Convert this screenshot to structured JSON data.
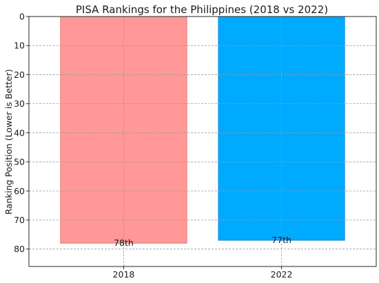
{
  "chart_data": {
    "type": "bar",
    "title": "PISA Rankings for the Philippines (2018 vs 2022)",
    "xlabel": "",
    "ylabel": "Ranking Position (Lower is Better)",
    "categories": [
      "2018",
      "2022"
    ],
    "values": [
      78,
      77
    ],
    "data_labels": [
      "78th",
      "77th"
    ],
    "colors": [
      "#ff9896",
      "#00aaff"
    ],
    "edge_colors": [
      "#e07d7b",
      "#1c8fd6"
    ],
    "ylim": [
      0,
      86
    ],
    "y_inverted": true,
    "y_ticks": [
      0,
      10,
      20,
      30,
      40,
      50,
      60,
      70,
      80
    ],
    "grid": true,
    "legend": "none"
  }
}
